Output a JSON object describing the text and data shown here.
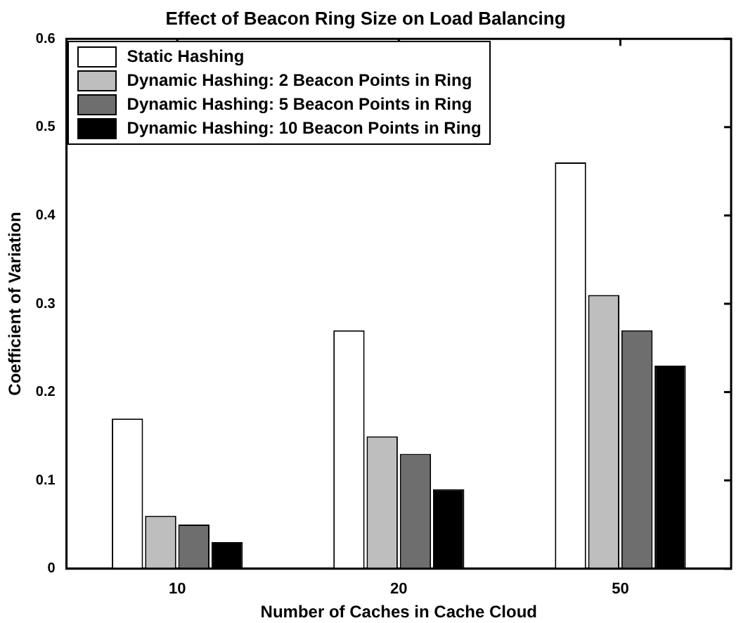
{
  "chart_data": {
    "type": "bar",
    "title": "Effect of Beacon Ring Size on Load Balancing",
    "xlabel": "Number of Caches in Cache Cloud",
    "ylabel": "Coefficient of Variation",
    "categories": [
      "10",
      "20",
      "50"
    ],
    "series": [
      {
        "name": "Static Hashing",
        "color": "#ffffff",
        "values": [
          0.17,
          0.27,
          0.46
        ]
      },
      {
        "name": "Dynamic Hashing: 2 Beacon Points in Ring",
        "color": "#bebebe",
        "values": [
          0.06,
          0.15,
          0.31
        ]
      },
      {
        "name": "Dynamic Hashing: 5 Beacon Points in Ring",
        "color": "#6e6e6e",
        "values": [
          0.05,
          0.13,
          0.27
        ]
      },
      {
        "name": "Dynamic Hashing: 10 Beacon Points in Ring",
        "color": "#000000",
        "values": [
          0.03,
          0.09,
          0.23
        ]
      }
    ],
    "ylim": [
      0,
      0.6
    ],
    "yticks": [
      0,
      0.1,
      0.2,
      0.3,
      0.4,
      0.5,
      0.6
    ],
    "grid": false,
    "legend": "top left"
  }
}
